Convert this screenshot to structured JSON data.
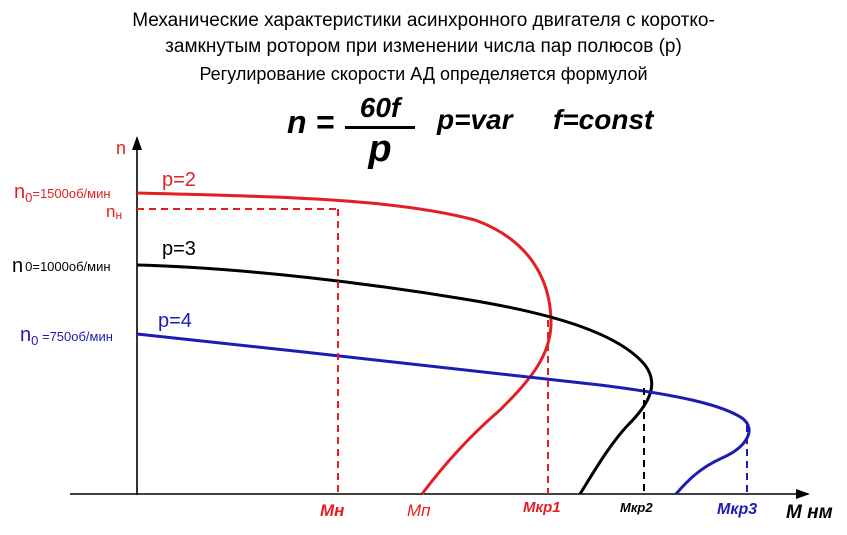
{
  "title": {
    "line1": "Механические характеристики асинхронного двигателя  с коротко-",
    "line2": "замкнутым ротором при изменении числа пар полюсов (р)",
    "line3": "Регулирование скорости АД определяется формулой"
  },
  "formula": {
    "lhs": "n =",
    "numerator": "60f",
    "denominator": "p",
    "p_var": "p=var",
    "f_const": "f=const"
  },
  "axes": {
    "y_label": "n",
    "x_label": "M нм"
  },
  "y_labels": {
    "n0_p2_main": "n",
    "n0_p2_sub": "0",
    "n0_p2_value": "=1500об/мин",
    "nn_main": "n",
    "nn_sub": "н",
    "n0_p3_main": "n",
    "n0_p3_sub": "0",
    "n0_p3_value": "=1000об/мин",
    "n0_p4_main": "n",
    "n0_p4_sub": "0",
    "n0_p4_value": " =750об/мин"
  },
  "curves": {
    "p2": {
      "label": "p=2",
      "color": "#e31e24"
    },
    "p3": {
      "label": "p=3",
      "color": "#000000"
    },
    "p4": {
      "label": "p=4",
      "color": "#1c1cb4"
    }
  },
  "x_labels": {
    "mn": "Мн",
    "mp": "Мп",
    "mkr1": "Мкр1",
    "mkr2": "Мкр2",
    "mkr3": "Мкр3"
  }
}
